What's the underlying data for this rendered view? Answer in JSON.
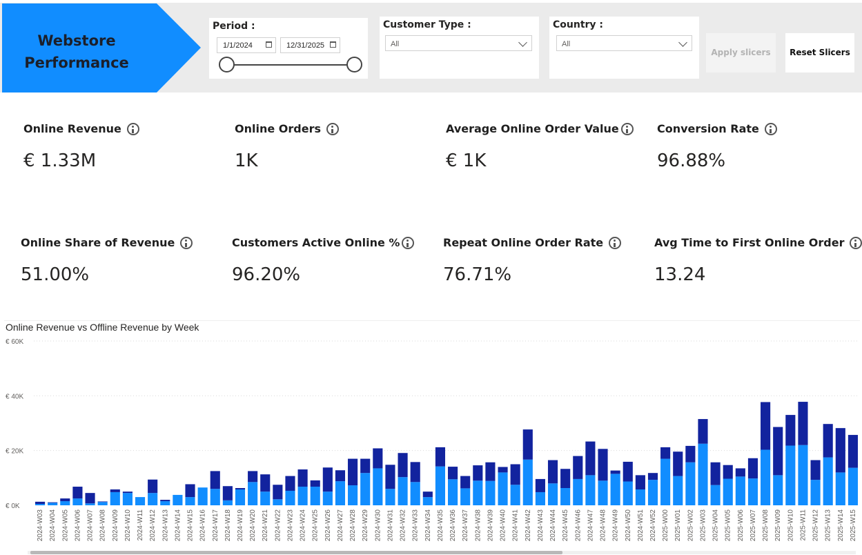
{
  "header": {
    "title_line1": "Webstore",
    "title_line2": "Performance",
    "accent_color": "#118dff"
  },
  "period": {
    "label": "Period :",
    "start_date": "1/1/2024",
    "end_date": "12/31/2025"
  },
  "customer_type": {
    "label": "Customer Type :",
    "value": "All"
  },
  "country": {
    "label": "Country :",
    "value": "All"
  },
  "buttons": {
    "apply": "Apply slicers",
    "reset": "Reset Slicers"
  },
  "kpis": [
    {
      "label": "Online Revenue",
      "value": "€ 1.33M"
    },
    {
      "label": "Online Orders",
      "value": "1K"
    },
    {
      "label": "Average Online Order Value",
      "value": "€ 1K"
    },
    {
      "label": "Conversion Rate",
      "value": "96.88%"
    },
    {
      "label": "Online Share of Revenue",
      "value": "51.00%"
    },
    {
      "label": "Customers Active Online %",
      "value": "96.20%"
    },
    {
      "label": "Repeat Online Order Rate",
      "value": "76.71%"
    },
    {
      "label": "Avg Time to First Online Order",
      "value": "13.24"
    }
  ],
  "chart_data": {
    "type": "bar",
    "stacked": true,
    "title": "Online Revenue vs Offline Revenue by Week",
    "y_ticks": [
      "€ 0K",
      "€ 20K",
      "€ 40K",
      "€ 60K"
    ],
    "ylim": [
      0,
      60000
    ],
    "grid": true,
    "colors": [
      "#118dff",
      "#12239e"
    ],
    "categories": [
      "2024-W03",
      "2024-W04",
      "2024-W05",
      "2024-W06",
      "2024-W07",
      "2024-W08",
      "2024-W09",
      "2024-W10",
      "2024-W11",
      "2024-W12",
      "2024-W13",
      "2024-W14",
      "2024-W15",
      "2024-W16",
      "2024-W17",
      "2024-W18",
      "2024-W19",
      "2024-W20",
      "2024-W21",
      "2024-W22",
      "2024-W23",
      "2024-W24",
      "2024-W25",
      "2024-W26",
      "2024-W27",
      "2024-W28",
      "2024-W29",
      "2024-W30",
      "2024-W31",
      "2024-W32",
      "2024-W33",
      "2024-W34",
      "2024-W35",
      "2024-W36",
      "2024-W37",
      "2024-W38",
      "2024-W39",
      "2024-W40",
      "2024-W41",
      "2024-W42",
      "2024-W43",
      "2024-W44",
      "2024-W45",
      "2024-W46",
      "2024-W47",
      "2024-W48",
      "2024-W49",
      "2024-W50",
      "2024-W51",
      "2024-W52",
      "2025-W00",
      "2025-W01",
      "2025-W02",
      "2025-W03",
      "2025-W04",
      "2025-W05",
      "2025-W06",
      "2025-W07",
      "2025-W08",
      "2025-W09",
      "2025-W10",
      "2025-W11",
      "2025-W12",
      "2025-W13",
      "2025-W14",
      "2025-W15"
    ],
    "series": [
      {
        "values": [
          500,
          900,
          1500,
          2500,
          700,
          1200,
          4800,
          4500,
          3000,
          4500,
          1500,
          3800,
          3000,
          6500,
          6000,
          1800,
          5800,
          8500,
          5000,
          2200,
          5300,
          6800,
          6800,
          5000,
          8800,
          7300,
          11800,
          13500,
          6000,
          10300,
          8500,
          3000,
          14200,
          9500,
          6200,
          9000,
          8900,
          12000,
          7500,
          16700,
          4800,
          8000,
          6300,
          9600,
          11000,
          9000,
          11500,
          8700,
          5800,
          9300,
          17000,
          10700,
          15700,
          22500,
          7400,
          9700,
          10500,
          9800,
          20300,
          11000,
          21800,
          22000,
          9300,
          17500,
          12000,
          13700
        ]
      },
      {
        "values": [
          800,
          200,
          1000,
          4300,
          3800,
          200,
          1000,
          500,
          0,
          4900,
          500,
          0,
          4700,
          0,
          6500,
          5200,
          500,
          4000,
          6300,
          5300,
          5400,
          6300,
          2300,
          8800,
          4000,
          9700,
          5200,
          7300,
          8800,
          8800,
          7300,
          2000,
          7000,
          4600,
          4500,
          5600,
          6800,
          2000,
          7500,
          11000,
          4800,
          8500,
          7000,
          8400,
          12300,
          11600,
          1200,
          7200,
          5200,
          2500,
          4200,
          8900,
          6000,
          9000,
          8300,
          5000,
          3000,
          7400,
          17400,
          17600,
          11200,
          15800,
          7200,
          12200,
          16200,
          12000
        ]
      }
    ]
  }
}
